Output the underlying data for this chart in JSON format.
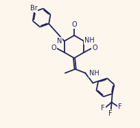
{
  "background_color": "#fdf6ec",
  "bond_color": "#1e2160",
  "atom_color": "#1e2160",
  "line_width": 1.3,
  "font_size": 6.5,
  "figsize": [
    2.04,
    1.87
  ],
  "dpi": 100,
  "xlim": [
    0,
    10
  ],
  "ylim": [
    0,
    9.2
  ]
}
